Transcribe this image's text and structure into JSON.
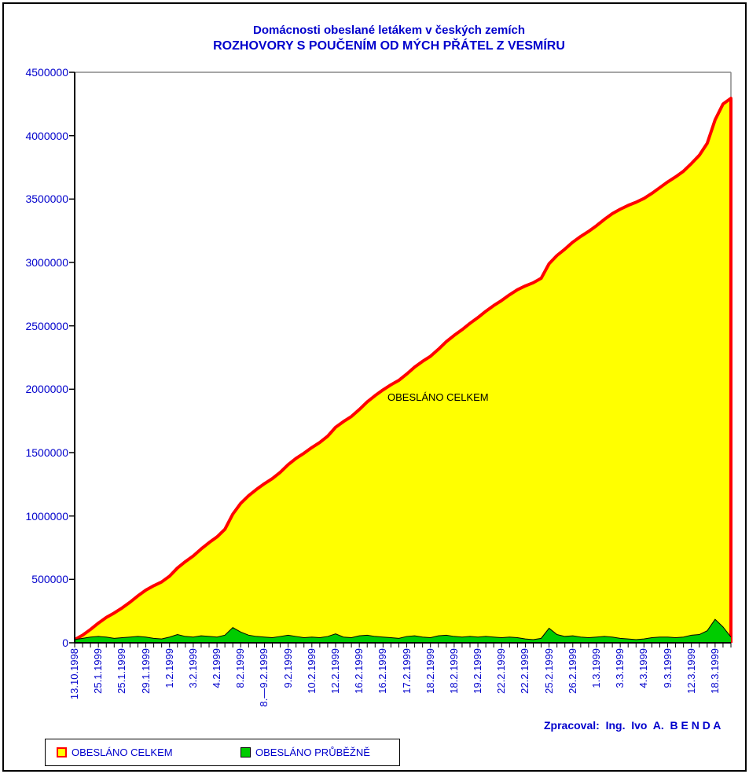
{
  "title": {
    "line1": "Domácnosti obeslané letákem v českých zemích",
    "line2": "ROZHOVORY S POUČENÍM OD MÝCH PŘÁTEL Z VESMÍRU"
  },
  "credit": "Zpracoval:  Ing.  Ivo  A.  B E N D A",
  "legend": {
    "items": [
      {
        "label": "OBESLÁNO CELKEM",
        "fill": "#ffff00",
        "border": "#ff0000"
      },
      {
        "label": "OBESLÁNO PRŮBĚŽNĚ",
        "fill": "#00cc00",
        "border": "#000000"
      }
    ]
  },
  "colors": {
    "text_blue": "#0000cc",
    "cumulative_fill": "#ffff00",
    "cumulative_line": "#ff0000",
    "incremental_fill": "#00cc00",
    "incremental_line": "#000000",
    "axis_black": "#000000",
    "plot_border_gray": "#888888",
    "background": "#ffffff"
  },
  "chart_data": {
    "type": "area",
    "title": "Domácnosti obeslané letákem v českých zemích — ROZHOVORY S POUČENÍM OD MÝCH PŘÁTEL Z VESMÍRU",
    "xlabel": "",
    "ylabel": "",
    "ylim": [
      0,
      4500000
    ],
    "grid": false,
    "legend_position": "bottom-left",
    "points_count": 84,
    "label_every_n_points": 3,
    "y_ticks": [
      0,
      500000,
      1000000,
      1500000,
      2000000,
      2500000,
      3000000,
      3500000,
      4000000,
      4500000
    ],
    "x_tick_labels": [
      "13.10.1998",
      "25.1.1999",
      "25.1.1999",
      "29.1.1999",
      "1.2.1999",
      "3.2.1999",
      "4.2.1999",
      "8.2.1999",
      "8.—9.2.1999",
      "9.2.1999",
      "10.2.1999",
      "12.2.1999",
      "16.2.1999",
      "16.2.1999",
      "17.2.1999",
      "18.2.1999",
      "18.2.1999",
      "19.2.1999",
      "22.2.1999",
      "22.2.1999",
      "25.2.1999",
      "26.2.1999",
      "1.3.1999",
      "3.3.1999",
      "4.3.1999",
      "9.3.1999",
      "12.3.1999",
      "18.3.1999"
    ],
    "annotations": [
      {
        "text": "OBESLÁNO CELKEM",
        "x": 493,
        "y": 505
      }
    ],
    "series": [
      {
        "name": "OBESLÁNO CELKEM",
        "role": "cumulative-total",
        "fill": "#ffff00",
        "line": "#ff0000",
        "values": [
          25000,
          60000,
          105000,
          155000,
          200000,
          235000,
          275000,
          320000,
          370000,
          415000,
          450000,
          480000,
          525000,
          590000,
          640000,
          685000,
          740000,
          790000,
          835000,
          895000,
          1015000,
          1100000,
          1160000,
          1210000,
          1255000,
          1295000,
          1345000,
          1405000,
          1455000,
          1495000,
          1540000,
          1580000,
          1630000,
          1700000,
          1745000,
          1785000,
          1840000,
          1900000,
          1950000,
          1995000,
          2035000,
          2070000,
          2120000,
          2175000,
          2220000,
          2260000,
          2315000,
          2375000,
          2425000,
          2470000,
          2520000,
          2565000,
          2615000,
          2660000,
          2700000,
          2745000,
          2785000,
          2815000,
          2840000,
          2875000,
          2990000,
          3055000,
          3105000,
          3160000,
          3205000,
          3245000,
          3290000,
          3340000,
          3385000,
          3420000,
          3450000,
          3475000,
          3505000,
          3545000,
          3590000,
          3635000,
          3675000,
          3720000,
          3780000,
          3845000,
          3940000,
          4125000,
          4250000,
          4295000
        ]
      },
      {
        "name": "OBESLÁNO PRŮBĚŽNĚ",
        "role": "per-period-increment",
        "fill": "#00cc00",
        "line": "#000000",
        "values": [
          25000,
          35000,
          45000,
          50000,
          45000,
          35000,
          40000,
          45000,
          50000,
          45000,
          35000,
          30000,
          45000,
          65000,
          50000,
          45000,
          55000,
          50000,
          45000,
          60000,
          120000,
          85000,
          60000,
          50000,
          45000,
          40000,
          50000,
          60000,
          50000,
          40000,
          45000,
          40000,
          50000,
          70000,
          45000,
          40000,
          55000,
          60000,
          50000,
          45000,
          40000,
          35000,
          50000,
          55000,
          45000,
          40000,
          55000,
          60000,
          50000,
          45000,
          50000,
          45000,
          50000,
          45000,
          40000,
          45000,
          40000,
          30000,
          25000,
          35000,
          115000,
          65000,
          50000,
          55000,
          45000,
          40000,
          45000,
          50000,
          45000,
          35000,
          30000,
          25000,
          30000,
          40000,
          45000,
          45000,
          40000,
          45000,
          60000,
          65000,
          95000,
          185000,
          125000,
          45000
        ]
      }
    ]
  }
}
